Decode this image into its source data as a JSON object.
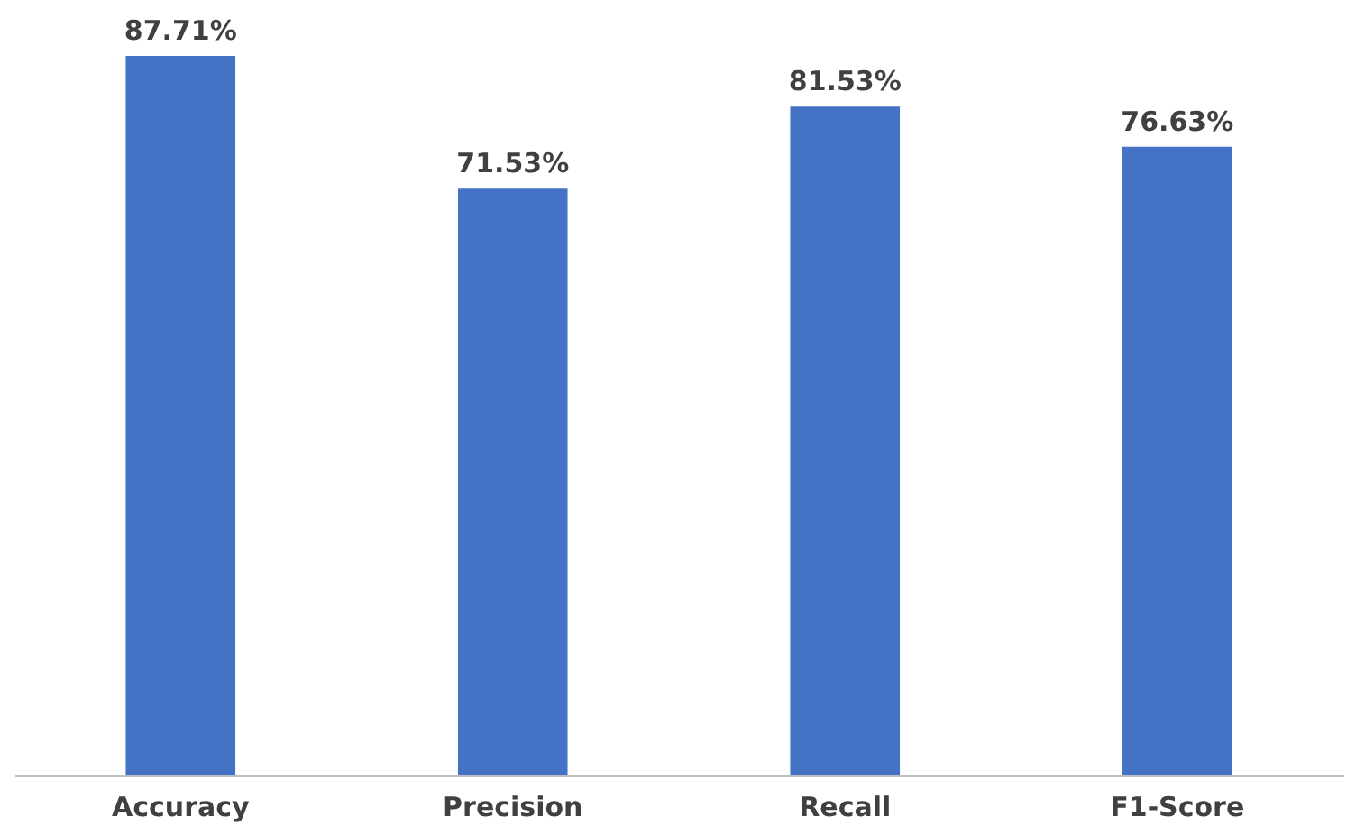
{
  "chart_data": {
    "type": "bar",
    "categories": [
      "Accuracy",
      "Precision",
      "Recall",
      "F1-Score"
    ],
    "values": [
      87.71,
      71.53,
      81.53,
      76.63
    ],
    "value_labels": [
      "87.71%",
      "71.53%",
      "81.53%",
      "76.63%"
    ],
    "color": "#4472c4"
  }
}
